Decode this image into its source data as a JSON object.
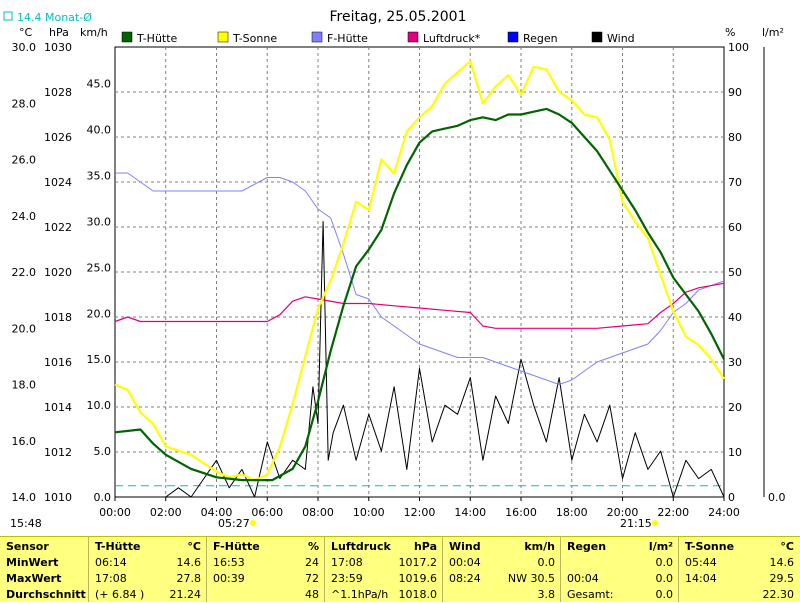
{
  "title": "Freitag, 25.05.2001",
  "monthly_avg_note": "14.4 Monat-Ø",
  "start_time": "15:48",
  "unit_headers": {
    "temp": "°C",
    "pressure": "hPa",
    "wind": "km/h",
    "humidity": "%",
    "rain": "l/m²"
  },
  "colors": {
    "t_huette": "#006400",
    "t_sonne": "#ffff00",
    "f_huette": "#8080ff",
    "luftdruck": "#e00080",
    "regen": "#0000ff",
    "wind": "#000000",
    "monthly_avg": "#00c0c0",
    "summary_bg": "#ffff80"
  },
  "annotations": {
    "sunrise": "05:27",
    "sunset": "21:15"
  },
  "chart_data": {
    "type": "line",
    "legend": [
      "T-Hütte",
      "T-Sonne",
      "F-Hütte",
      "Luftdruck*",
      "Regen",
      "Wind"
    ],
    "axes": {
      "temp_ticks": [
        "14.0",
        "16.0",
        "18.0",
        "20.0",
        "22.0",
        "24.0",
        "26.0",
        "28.0",
        "30.0"
      ],
      "pressure_ticks": [
        "1010",
        "1012",
        "1014",
        "1016",
        "1018",
        "1020",
        "1022",
        "1024",
        "1026",
        "1028",
        "1030"
      ],
      "wind_ticks": [
        "0.0",
        "5.0",
        "10.0",
        "15.0",
        "20.0",
        "25.0",
        "30.0",
        "35.0",
        "40.0",
        "45.0"
      ],
      "humidity_ticks": [
        "0",
        "10",
        "20",
        "30",
        "40",
        "50",
        "60",
        "70",
        "80",
        "90",
        "100"
      ],
      "rain_ticks": [
        "0.0"
      ],
      "x_ticks": [
        "00:00",
        "02:00",
        "04:00",
        "06:00",
        "08:00",
        "10:00",
        "12:00",
        "14:00",
        "16:00",
        "18:00",
        "20:00",
        "22:00",
        "24:00"
      ],
      "temp_range": [
        14,
        30
      ],
      "pressure_range": [
        1010,
        1030
      ],
      "wind_range": [
        0,
        49
      ],
      "humidity_range": [
        0,
        100
      ],
      "x_range_hours": [
        0,
        24
      ]
    },
    "monthly_avg_temp": 14.4,
    "series": [
      {
        "name": "T-Hütte",
        "axis": "temp",
        "x": [
          0,
          1,
          1.5,
          2,
          3,
          4,
          5,
          5.5,
          6.2,
          7,
          7.5,
          8,
          8.5,
          9,
          9.5,
          10,
          10.5,
          11,
          11.5,
          12,
          12.5,
          13,
          13.5,
          14,
          14.5,
          15,
          15.5,
          16,
          16.5,
          17,
          17.5,
          18,
          18.5,
          19,
          19.5,
          20,
          20.5,
          21,
          21.5,
          22,
          22.5,
          23,
          23.5,
          24
        ],
        "y": [
          16.3,
          16.4,
          15.9,
          15.5,
          15.0,
          14.7,
          14.6,
          14.6,
          14.6,
          15.0,
          15.8,
          17.4,
          19.2,
          20.8,
          22.2,
          22.8,
          23.5,
          24.8,
          25.8,
          26.6,
          27.0,
          27.1,
          27.2,
          27.4,
          27.5,
          27.4,
          27.6,
          27.6,
          27.7,
          27.8,
          27.6,
          27.3,
          26.8,
          26.3,
          25.6,
          24.9,
          24.2,
          23.4,
          22.7,
          21.8,
          21.2,
          20.6,
          19.8,
          18.9
        ]
      },
      {
        "name": "T-Sonne",
        "axis": "temp",
        "x": [
          0,
          0.5,
          1,
          1.5,
          2,
          3,
          4,
          4.5,
          5,
          5.5,
          6,
          6.5,
          7,
          7.5,
          8,
          8.5,
          9,
          9.5,
          10,
          10.5,
          11,
          11.5,
          12,
          12.5,
          13,
          13.5,
          14,
          14.5,
          15,
          15.5,
          16,
          16.5,
          17,
          17.5,
          18,
          18.5,
          19,
          19.5,
          20,
          20.5,
          21,
          21.5,
          22,
          22.5,
          23,
          23.5,
          24
        ],
        "y": [
          18.0,
          17.8,
          17.0,
          16.6,
          15.8,
          15.5,
          14.9,
          14.7,
          14.8,
          14.6,
          14.8,
          15.8,
          17.3,
          19.0,
          20.7,
          21.7,
          23.0,
          24.5,
          24.2,
          26.0,
          25.5,
          27.0,
          27.5,
          27.9,
          28.7,
          29.1,
          29.5,
          28.0,
          28.6,
          29.0,
          28.3,
          29.3,
          29.2,
          28.4,
          28.1,
          27.6,
          27.5,
          26.7,
          24.5,
          23.8,
          23.2,
          21.9,
          20.6,
          19.7,
          19.4,
          18.9,
          18.2
        ]
      },
      {
        "name": "F-Hütte",
        "axis": "humidity",
        "x": [
          0,
          0.5,
          1,
          1.5,
          2,
          3,
          4,
          5,
          6,
          6.5,
          7,
          7.5,
          8,
          8.5,
          9,
          9.5,
          10,
          10.5,
          11,
          11.5,
          12,
          12.5,
          13,
          13.5,
          14,
          14.5,
          15,
          15.5,
          16,
          16.5,
          17,
          17.5,
          18,
          18.5,
          19,
          19.5,
          20,
          20.5,
          21,
          21.5,
          22,
          22.5,
          23,
          23.5,
          24
        ],
        "y": [
          72,
          72,
          70,
          68,
          68,
          68,
          68,
          68,
          71,
          71,
          70,
          68,
          64,
          62,
          54,
          45,
          44,
          40,
          38,
          36,
          34,
          33,
          32,
          31,
          31,
          31,
          30,
          29,
          28,
          27,
          26,
          25,
          26,
          28,
          30,
          31,
          32,
          33,
          34,
          37,
          41,
          43,
          46,
          47,
          48
        ]
      },
      {
        "name": "Luftdruck*",
        "axis": "pressure",
        "x": [
          0,
          0.5,
          1,
          2,
          4,
          6,
          6.5,
          7,
          7.5,
          8,
          9,
          10,
          11,
          12,
          13,
          14,
          14.5,
          15,
          16,
          17,
          18,
          19,
          20,
          21,
          21.5,
          22,
          22.5,
          23,
          24
        ],
        "y": [
          1017.8,
          1018.0,
          1017.8,
          1017.8,
          1017.8,
          1017.8,
          1018.1,
          1018.7,
          1018.9,
          1018.8,
          1018.6,
          1018.6,
          1018.5,
          1018.4,
          1018.3,
          1018.2,
          1017.6,
          1017.5,
          1017.5,
          1017.5,
          1017.5,
          1017.5,
          1017.6,
          1017.7,
          1018.2,
          1018.6,
          1019.1,
          1019.3,
          1019.5
        ]
      },
      {
        "name": "Wind",
        "axis": "wind",
        "x": [
          0,
          1,
          2,
          2.5,
          3,
          3.5,
          4,
          4.5,
          5,
          5.5,
          6,
          6.5,
          7,
          7.5,
          7.8,
          8,
          8.2,
          8.4,
          8.6,
          9,
          9.5,
          10,
          10.5,
          11,
          11.5,
          12,
          12.5,
          13,
          13.5,
          14,
          14.5,
          15,
          15.5,
          16,
          16.5,
          17,
          17.5,
          18,
          18.5,
          19,
          19.5,
          20,
          20.5,
          21,
          21.5,
          22,
          22.5,
          23,
          23.5,
          24
        ],
        "y": [
          0,
          0,
          0,
          1,
          0,
          2,
          4,
          1,
          3,
          0,
          6,
          2,
          4,
          3,
          12,
          8,
          30,
          4,
          7,
          10,
          4,
          9,
          5,
          12,
          3,
          14,
          6,
          10,
          9,
          13,
          4,
          11,
          8,
          15,
          10,
          6,
          13,
          4,
          9,
          6,
          10,
          2,
          7,
          3,
          5,
          0,
          4,
          2,
          3,
          0
        ]
      }
    ]
  },
  "summary": {
    "row_labels": [
      "Sensor",
      "MinWert",
      "MaxWert",
      "Durchschnitt"
    ],
    "columns": [
      {
        "name": "T-Hütte",
        "unit": "°C",
        "min_time": "06:14",
        "min_value": "14.6",
        "max_time": "17:08",
        "max_value": "27.8",
        "avg_note": "(+ 6.84 )",
        "avg_value": "21.24"
      },
      {
        "name": "F-Hütte",
        "unit": "%",
        "min_time": "16:53",
        "min_value": "24",
        "max_time": "00:39",
        "max_value": "72",
        "avg_note": "",
        "avg_value": "48"
      },
      {
        "name": "Luftdruck",
        "unit": "hPa",
        "min_time": "17:08",
        "min_value": "1017.2",
        "max_time": "23:59",
        "max_value": "1019.6",
        "avg_note": "^1.1hPa/h",
        "avg_value": "1018.0"
      },
      {
        "name": "Wind",
        "unit": "km/h",
        "min_time": "00:04",
        "min_value": "0.0",
        "max_time": "08:24",
        "max_value": "NW 30.5",
        "avg_note": "",
        "avg_value": "3.8"
      },
      {
        "name": "Regen",
        "unit": "l/m²",
        "min_time": "",
        "min_value": "0.0",
        "max_time": "00:04",
        "max_value": "0.0",
        "avg_note": "Gesamt:",
        "avg_value": "0.0"
      },
      {
        "name": "T-Sonne",
        "unit": "°C",
        "min_time": "05:44",
        "min_value": "14.6",
        "max_time": "14:04",
        "max_value": "29.5",
        "avg_note": "",
        "avg_value": "22.30"
      }
    ]
  }
}
